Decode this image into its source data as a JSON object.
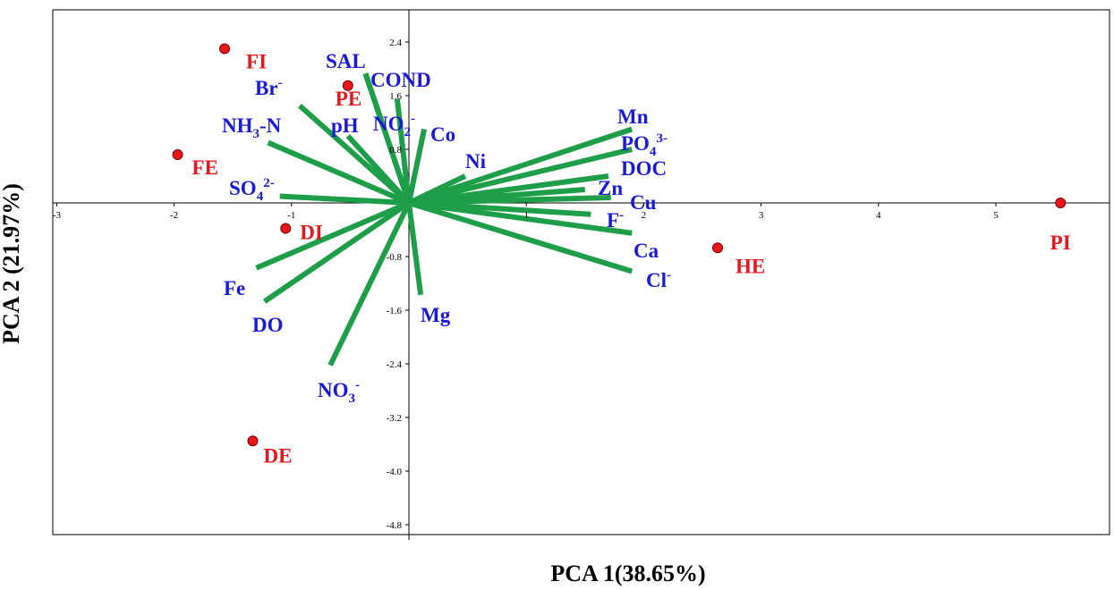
{
  "chart_data": {
    "type": "scatter",
    "subtype": "pca-biplot",
    "xlabel": "PCA 1(38.65%)",
    "ylabel": "PCA 2 (21.97%)",
    "xlim": [
      -3,
      6
    ],
    "ylim": [
      -5.2,
      2.9
    ],
    "x_ticks": [
      -3,
      -2,
      -1,
      1,
      2,
      3,
      4,
      5
    ],
    "y_ticks": [
      2.4,
      1.6,
      0.8,
      -0.8,
      -1.6,
      -2.4,
      -3.2,
      -4.0,
      -4.8
    ],
    "x_tick_labels": [
      "-3",
      "-2",
      "-1",
      "1",
      "2",
      "3",
      "4",
      "5"
    ],
    "y_tick_labels": [
      "2.4",
      "1.6",
      "0.8",
      "-0.8",
      "-1.6",
      "-2.4",
      "-3.2",
      "-4.0",
      "-4.8"
    ],
    "grid": false,
    "colors": {
      "vector": "#1f9e4a",
      "variable_label": "#1a1ad6",
      "site": "#e8151b",
      "site_edge": "#7a0000"
    },
    "sites": [
      {
        "label": "FI",
        "x": -1.57,
        "y": 2.3
      },
      {
        "label": "PE",
        "x": -0.52,
        "y": 1.75
      },
      {
        "label": "FE",
        "x": -1.97,
        "y": 0.72
      },
      {
        "label": "DI",
        "x": -1.05,
        "y": -0.38
      },
      {
        "label": "DE",
        "x": -1.33,
        "y": -3.55
      },
      {
        "label": "HE",
        "x": 2.63,
        "y": -0.67
      },
      {
        "label": "PI",
        "x": 5.55,
        "y": 0.0
      }
    ],
    "loadings": [
      {
        "label": "SAL",
        "x": -0.37,
        "y": 1.93
      },
      {
        "label": "COND",
        "x": -0.37,
        "y": 1.93
      },
      {
        "label": "Br",
        "superscript": "-",
        "x": -0.93,
        "y": 1.45
      },
      {
        "label": "NH",
        "subscript": "3",
        "suffix": "-N",
        "x": -1.2,
        "y": 0.9
      },
      {
        "label": "pH",
        "x": -0.52,
        "y": 1.0
      },
      {
        "label": "NO",
        "subscript": "2",
        "superscript": "-",
        "x": -0.1,
        "y": 1.55
      },
      {
        "label": "Co",
        "x": 0.13,
        "y": 1.1
      },
      {
        "label": "SO",
        "subscript": "4",
        "superscript": "2-",
        "x": -1.1,
        "y": 0.1
      },
      {
        "label": "Ni",
        "x": 0.48,
        "y": 0.4
      },
      {
        "label": "Mn",
        "x": 1.9,
        "y": 1.1
      },
      {
        "label": "PO",
        "subscript": "4",
        "superscript": "3-",
        "x": 1.9,
        "y": 0.8
      },
      {
        "label": "DOC",
        "x": 1.7,
        "y": 0.4
      },
      {
        "label": "Zn",
        "x": 1.5,
        "y": 0.2
      },
      {
        "label": "Cu",
        "x": 1.72,
        "y": 0.08
      },
      {
        "label": "F",
        "superscript": "-",
        "x": 1.55,
        "y": -0.17
      },
      {
        "label": "Ca",
        "x": 1.9,
        "y": -0.45
      },
      {
        "label": "Cl",
        "superscript": "-",
        "x": 1.9,
        "y": -1.02
      },
      {
        "label": "Mg",
        "x": 0.1,
        "y": -1.37
      },
      {
        "label": "Fe",
        "x": -1.3,
        "y": -0.97
      },
      {
        "label": "DO",
        "x": -1.23,
        "y": -1.47
      },
      {
        "label": "NO",
        "subscript": "3",
        "superscript": "-",
        "x": -0.67,
        "y": -2.42
      }
    ]
  }
}
